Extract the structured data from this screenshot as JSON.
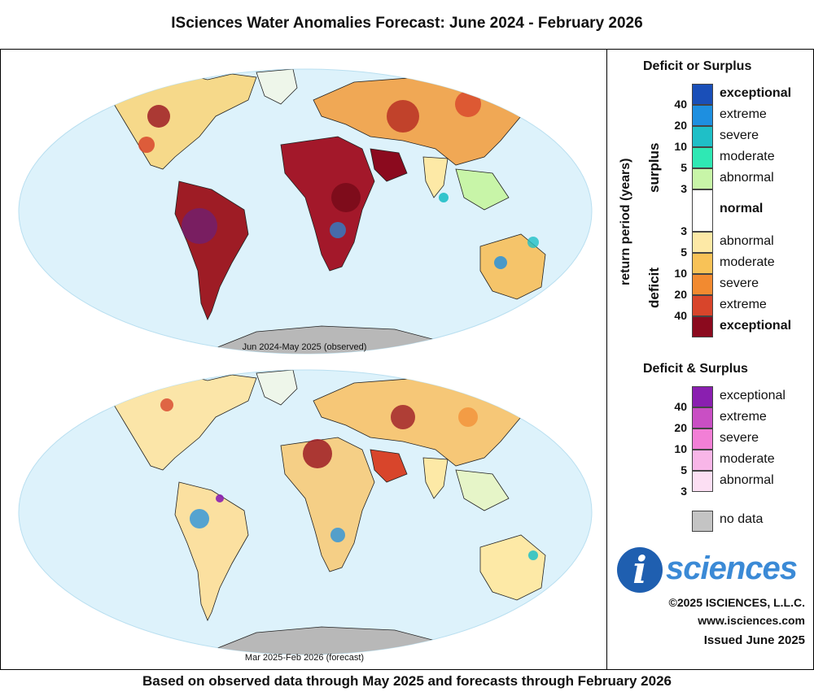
{
  "title": "ISciences Water Anomalies Forecast: June 2024 - February 2026",
  "footer": "Based on observed data through May 2025 and forecasts through February 2026",
  "maps": [
    {
      "label": "Jun 2024-May 2025 (observed)",
      "period": "observed"
    },
    {
      "label": "Mar 2025-Feb 2026 (forecast)",
      "period": "forecast"
    }
  ],
  "legend": {
    "deficit_surplus": {
      "title": "Deficit or Surplus",
      "axis_label": "return period (years)",
      "surplus_label": "surplus",
      "deficit_label": "deficit",
      "surplus_classes": [
        {
          "label": "exceptional",
          "color": "#1a4fb8",
          "bold": true
        },
        {
          "label": "extreme",
          "color": "#1e8fe0",
          "bold": false
        },
        {
          "label": "severe",
          "color": "#1fbfc7",
          "bold": false
        },
        {
          "label": "moderate",
          "color": "#2fe8b4",
          "bold": false
        },
        {
          "label": "abnormal",
          "color": "#c8f5a8",
          "bold": false
        }
      ],
      "normal": {
        "label": "normal",
        "color": "#ffffff"
      },
      "deficit_classes": [
        {
          "label": "abnormal",
          "color": "#fde9a6",
          "bold": false
        },
        {
          "label": "moderate",
          "color": "#f8c257",
          "bold": false
        },
        {
          "label": "severe",
          "color": "#f28a30",
          "bold": false
        },
        {
          "label": "extreme",
          "color": "#d8452b",
          "bold": false
        },
        {
          "label": "exceptional",
          "color": "#8b0a1e",
          "bold": true
        }
      ],
      "surplus_return_periods": [
        "40",
        "20",
        "10",
        "5",
        "3"
      ],
      "deficit_return_periods": [
        "3",
        "5",
        "10",
        "20",
        "40"
      ]
    },
    "both": {
      "title": "Deficit & Surplus",
      "classes": [
        {
          "label": "exceptional",
          "color": "#8a1fb0"
        },
        {
          "label": "extreme",
          "color": "#c94fc4"
        },
        {
          "label": "severe",
          "color": "#f27fd6"
        },
        {
          "label": "moderate",
          "color": "#f8b6e8"
        },
        {
          "label": "abnormal",
          "color": "#fcdff3"
        }
      ],
      "return_periods": [
        "40",
        "20",
        "10",
        "5",
        "3"
      ]
    },
    "no_data": {
      "label": "no data",
      "color": "#c4c4c4"
    }
  },
  "logo": {
    "letter": "i",
    "word": "sciences"
  },
  "credits": {
    "copyright": "©2025 ISCIENCES, L.L.C.",
    "website": "www.isciences.com",
    "issued": "Issued June 2025"
  }
}
